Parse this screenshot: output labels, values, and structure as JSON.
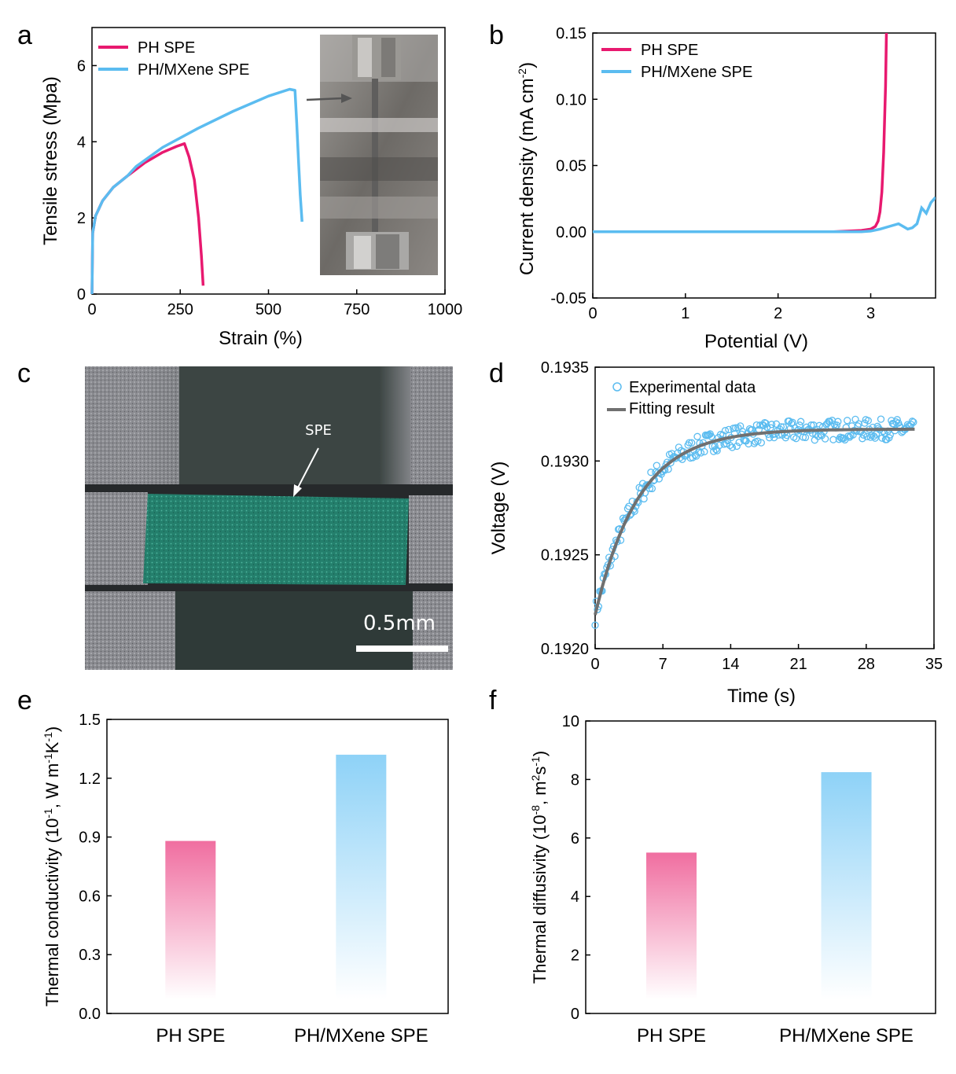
{
  "panels": {
    "a": {
      "label": "a"
    },
    "b": {
      "label": "b"
    },
    "c": {
      "label": "c",
      "annotation": "SPE",
      "scalebar": "0.5mm"
    },
    "d": {
      "label": "d"
    },
    "e": {
      "label": "e"
    },
    "f": {
      "label": "f"
    }
  },
  "colors": {
    "pink": "#e8196f",
    "blue": "#5bbcf0",
    "gray": "#707070",
    "bar_pink": "#f06ea0",
    "bar_blue": "#8ed2f7"
  },
  "chart_data": [
    {
      "id": "a",
      "type": "line",
      "xlabel": "Strain (%)",
      "ylabel": "Tensile stress (Mpa)",
      "xlim": [
        0,
        1000
      ],
      "ylim": [
        0,
        7
      ],
      "xticks": [
        "0",
        "250",
        "500",
        "750",
        "1000"
      ],
      "yticks": [
        "0",
        "2",
        "4",
        "6"
      ],
      "legend_position": "top-left",
      "series": [
        {
          "name": "PH SPE",
          "color": "#e8196f",
          "x": [
            0,
            2,
            10,
            30,
            60,
            100,
            150,
            200,
            240,
            262,
            275,
            290,
            302,
            310,
            315
          ],
          "y": [
            0,
            1.6,
            2.05,
            2.45,
            2.8,
            3.1,
            3.45,
            3.72,
            3.88,
            3.95,
            3.6,
            3.0,
            2.0,
            1.0,
            0.22
          ]
        },
        {
          "name": "PH/MXene SPE",
          "color": "#5bbcf0",
          "x": [
            0,
            2,
            10,
            30,
            60,
            100,
            125,
            200,
            300,
            400,
            500,
            560,
            575,
            580,
            585,
            590,
            595
          ],
          "y": [
            0,
            1.6,
            2.05,
            2.45,
            2.8,
            3.1,
            3.35,
            3.85,
            4.35,
            4.8,
            5.2,
            5.38,
            5.35,
            4.5,
            3.5,
            2.6,
            1.9
          ]
        }
      ]
    },
    {
      "id": "b",
      "type": "line",
      "xlabel": "Potential (V)",
      "ylabel": "Current density (mA cm-2)",
      "ylabel_main": "Current density (mA cm",
      "ylabel_sup": "-2",
      "ylabel_end": ")",
      "xlim": [
        0,
        3.7
      ],
      "ylim": [
        -0.05,
        0.15
      ],
      "xticks": [
        "0",
        "1",
        "2",
        "3"
      ],
      "yticks": [
        "-0.05",
        "0.00",
        "0.05",
        "0.10",
        "0.15"
      ],
      "legend_position": "top-left",
      "series": [
        {
          "name": "PH SPE",
          "color": "#e8196f",
          "x": [
            0,
            2.6,
            2.9,
            3.0,
            3.05,
            3.08,
            3.1,
            3.12,
            3.14,
            3.16,
            3.17
          ],
          "y": [
            0,
            0,
            0.001,
            0.002,
            0.004,
            0.008,
            0.015,
            0.03,
            0.06,
            0.11,
            0.15
          ]
        },
        {
          "name": "PH/MXene SPE",
          "color": "#5bbcf0",
          "x": [
            0,
            2.9,
            3.0,
            3.1,
            3.2,
            3.3,
            3.35,
            3.4,
            3.45,
            3.5,
            3.55,
            3.6,
            3.65,
            3.7
          ],
          "y": [
            0,
            0,
            0.0005,
            0.002,
            0.004,
            0.006,
            0.004,
            0.002,
            0.003,
            0.006,
            0.018,
            0.014,
            0.022,
            0.026
          ]
        }
      ]
    },
    {
      "id": "d",
      "type": "scatter",
      "xlabel": "Time (s)",
      "ylabel": "Voltage (V)",
      "xlim": [
        0,
        35
      ],
      "ylim": [
        0.192,
        0.1935
      ],
      "xticks": [
        "0",
        "7",
        "14",
        "21",
        "28",
        "35"
      ],
      "yticks": [
        "0.1920",
        "0.1925",
        "0.1930",
        "0.1935"
      ],
      "legend_position": "top-left",
      "fit": {
        "y0": 0.19218,
        "amplitude": 0.00099,
        "tau": 4.5,
        "x_max": 33
      },
      "series": [
        {
          "name": "Experimental data",
          "marker": "open-circle",
          "color": "#5bbcf0"
        },
        {
          "name": "Fitting result",
          "line": true,
          "color": "#707070"
        }
      ]
    },
    {
      "id": "e",
      "type": "bar",
      "ylabel": "Thermal conductivity (10-1, W m-1K-1)",
      "ylabel_parts": [
        "Thermal conductivity (10",
        "-1",
        ", W m",
        "-1",
        "K",
        "-1",
        ")"
      ],
      "categories": [
        "PH SPE",
        "PH/MXene SPE"
      ],
      "values": [
        0.88,
        1.32
      ],
      "ylim": [
        0,
        1.5
      ],
      "yticks": [
        "0.0",
        "0.3",
        "0.6",
        "0.9",
        "1.2",
        "1.5"
      ]
    },
    {
      "id": "f",
      "type": "bar",
      "ylabel": "Thermal diffusivity (10-8, m2s-1)",
      "ylabel_parts": [
        "Thermal diffusivity (10",
        "-8",
        ", m",
        "2",
        "s",
        "-1",
        ")"
      ],
      "categories": [
        "PH SPE",
        "PH/MXene SPE"
      ],
      "values": [
        5.5,
        8.25
      ],
      "ylim": [
        0,
        10
      ],
      "yticks": [
        "0",
        "2",
        "4",
        "6",
        "8",
        "10"
      ]
    }
  ]
}
